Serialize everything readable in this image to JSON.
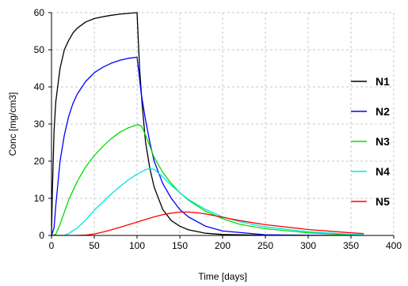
{
  "chart_data": {
    "type": "line",
    "xlabel": "Time [days]",
    "ylabel": "Conc [mg/cm3]",
    "xlim": [
      0,
      400
    ],
    "ylim": [
      0,
      60
    ],
    "xticks": [
      0,
      50,
      100,
      150,
      200,
      250,
      300,
      350,
      400
    ],
    "yticks": [
      0,
      10,
      20,
      30,
      40,
      50,
      60
    ],
    "grid": true,
    "legend_position": "right",
    "series": [
      {
        "name": "N1",
        "color": "#000000",
        "x": [
          0,
          1,
          3,
          5,
          10,
          15,
          20,
          25,
          30,
          40,
          50,
          60,
          70,
          80,
          90,
          100,
          103,
          106,
          110,
          115,
          120,
          130,
          140,
          150,
          160,
          180,
          200,
          250,
          300,
          350
        ],
        "y": [
          0,
          12,
          28,
          36,
          45,
          50,
          52.5,
          54.5,
          55.8,
          57.5,
          58.4,
          58.9,
          59.3,
          59.6,
          59.8,
          60,
          45,
          35,
          25,
          18,
          13,
          7,
          4,
          2.5,
          1.5,
          0.6,
          0.25,
          0.05,
          0,
          0
        ]
      },
      {
        "name": "N2",
        "color": "#0000ff",
        "x": [
          0,
          3,
          5,
          10,
          15,
          20,
          25,
          30,
          40,
          50,
          60,
          70,
          80,
          90,
          100,
          105,
          110,
          115,
          120,
          130,
          140,
          150,
          160,
          180,
          200,
          250,
          300,
          350
        ],
        "y": [
          0,
          2,
          8,
          20,
          27,
          32,
          35.5,
          38,
          41.5,
          43.8,
          45.3,
          46.4,
          47.2,
          47.7,
          48,
          38,
          31,
          25,
          20,
          14,
          10,
          7,
          5,
          2.5,
          1.2,
          0.2,
          0.05,
          0
        ]
      },
      {
        "name": "N3",
        "color": "#00dd00",
        "x": [
          0,
          5,
          10,
          20,
          30,
          40,
          50,
          60,
          70,
          80,
          90,
          100,
          105,
          110,
          115,
          120,
          130,
          140,
          150,
          160,
          180,
          200,
          220,
          250,
          300,
          350,
          365
        ],
        "y": [
          0,
          0.3,
          3,
          9.5,
          14.5,
          18.5,
          21.5,
          24,
          26.1,
          27.8,
          29,
          29.8,
          29.5,
          27,
          24,
          21,
          17,
          14,
          11.5,
          9.5,
          6.5,
          4.5,
          3,
          1.8,
          0.7,
          0.2,
          0.1
        ]
      },
      {
        "name": "N4",
        "color": "#00e5e5",
        "x": [
          0,
          15,
          20,
          30,
          40,
          50,
          60,
          70,
          80,
          90,
          100,
          110,
          115,
          120,
          130,
          140,
          150,
          160,
          180,
          200,
          220,
          250,
          300,
          350,
          365
        ],
        "y": [
          0,
          0,
          0.5,
          2,
          4.2,
          6.8,
          9,
          11.2,
          13.2,
          15,
          16.5,
          17.7,
          18,
          17.8,
          15.8,
          13.5,
          11.5,
          9.7,
          7,
          5,
          3.7,
          2.3,
          1,
          0.3,
          0.2
        ]
      },
      {
        "name": "N5",
        "color": "#ff0000",
        "x": [
          0,
          30,
          40,
          50,
          60,
          70,
          80,
          90,
          100,
          110,
          120,
          130,
          140,
          150,
          160,
          170,
          180,
          200,
          220,
          250,
          300,
          350,
          365
        ],
        "y": [
          0,
          0,
          0.1,
          0.4,
          0.9,
          1.5,
          2.2,
          2.9,
          3.6,
          4.3,
          5,
          5.6,
          6,
          6.3,
          6.3,
          6.1,
          5.8,
          4.9,
          4,
          2.9,
          1.6,
          0.7,
          0.5
        ]
      }
    ]
  }
}
